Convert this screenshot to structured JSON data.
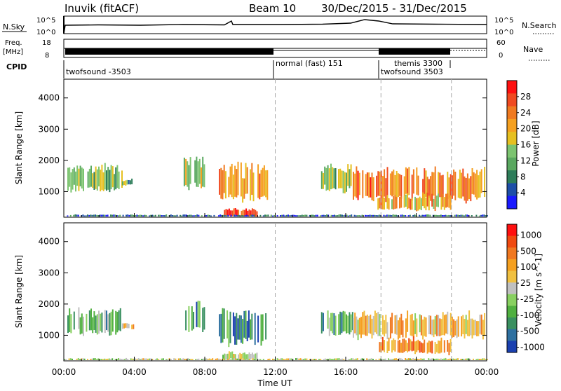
{
  "header": {
    "station": "Inuvik (fitACF)",
    "beam": "Beam 10",
    "date_range": "30/Dec/2015 - 31/Dec/2015"
  },
  "status": {
    "nsky_label": "N.Sky",
    "nsky_ticks": [
      "10^5",
      "10^0"
    ],
    "nsearch_label": "N.Search",
    "freq_label_1": "Freq.",
    "freq_label_2": "[MHz]",
    "freq_ticks": [
      "18",
      "8"
    ],
    "nave_label": "Nave",
    "nave_ticks": [
      "60",
      "0"
    ],
    "cpid_label": "CPID",
    "cpid_segments": [
      {
        "label": "twofsound -3503"
      },
      {
        "label": "normal (fast) 151"
      },
      {
        "label": "themis 3300"
      },
      {
        "label": "twofsound 3503"
      }
    ]
  },
  "chart_data": [
    {
      "type": "heatmap",
      "name": "power-panel",
      "ylabel": "Slant Range [km]",
      "xlabel": "Time UT",
      "x_ticks": [
        "00:00",
        "04:00",
        "08:00",
        "12:00",
        "16:00",
        "20:00",
        "00:00"
      ],
      "y_ticks": [
        "1000",
        "2000",
        "3000",
        "4000"
      ],
      "ylim_km": [
        180,
        4600
      ],
      "xlim_hours": [
        0,
        24
      ],
      "mode_change_times_hours": [
        12,
        18,
        22
      ],
      "colorbar": {
        "label": "Power [dB]",
        "ticks": [
          "4",
          "8",
          "12",
          "16",
          "20",
          "24",
          "28"
        ],
        "colors": [
          "#1a1aff",
          "#1e4fa8",
          "#2e7d5a",
          "#5aa860",
          "#7cc470",
          "#e6c020",
          "#f5a020",
          "#f07a20",
          "#f04a20",
          "#ff1010"
        ]
      },
      "echo_regions": [
        {
          "t0": 0.2,
          "t1": 3.3,
          "r0": 1000,
          "r1": 1800,
          "level": 0.45
        },
        {
          "t0": 3.3,
          "t1": 4.0,
          "r0": 1200,
          "r1": 1400,
          "level": 0.35
        },
        {
          "t0": 6.8,
          "t1": 8.0,
          "r0": 1100,
          "r1": 2100,
          "level": 0.5
        },
        {
          "t0": 8.8,
          "t1": 11.6,
          "r0": 700,
          "r1": 1800,
          "level": 0.7
        },
        {
          "t0": 9.0,
          "t1": 11.0,
          "r0": 200,
          "r1": 450,
          "level": 0.9
        },
        {
          "t0": 14.6,
          "t1": 16.4,
          "r0": 1000,
          "r1": 1800,
          "level": 0.45
        },
        {
          "t0": 16.4,
          "t1": 23.9,
          "r0": 700,
          "r1": 1700,
          "level": 0.75
        },
        {
          "t0": 17.8,
          "t1": 22.0,
          "r0": 400,
          "r1": 900,
          "level": 0.65
        },
        {
          "t0": 0.0,
          "t1": 24.0,
          "r0": 180,
          "r1": 260,
          "level": 0.2
        }
      ]
    },
    {
      "type": "heatmap",
      "name": "velocity-panel",
      "ylabel": "Slant Range [km]",
      "xlabel": "Time UT",
      "x_ticks": [
        "00:00",
        "04:00",
        "08:00",
        "12:00",
        "16:00",
        "20:00",
        "00:00"
      ],
      "y_ticks": [
        "1000",
        "2000",
        "3000",
        "4000"
      ],
      "ylim_km": [
        180,
        4600
      ],
      "xlim_hours": [
        0,
        24
      ],
      "mode_change_times_hours": [
        12,
        18,
        22
      ],
      "colorbar": {
        "label": "Velocity [m s^-1]",
        "ticks": [
          "1000",
          "500",
          "100",
          "25",
          "-25",
          "-100",
          "-500",
          "-1000"
        ],
        "colors": [
          "#1a40b0",
          "#2e70a0",
          "#3a9060",
          "#50b040",
          "#88d060",
          "#c0c0c0",
          "#f0c040",
          "#f5a020",
          "#f07820",
          "#f04a10",
          "#ff1010"
        ]
      },
      "echo_regions": [
        {
          "t0": 0.2,
          "t1": 3.3,
          "r0": 1000,
          "r1": 1800,
          "level": 0.35
        },
        {
          "t0": 3.3,
          "t1": 4.0,
          "r0": 1200,
          "r1": 1400,
          "level": 0.6
        },
        {
          "t0": 6.8,
          "t1": 8.0,
          "r0": 1100,
          "r1": 2100,
          "level": 0.25
        },
        {
          "t0": 8.8,
          "t1": 11.6,
          "r0": 700,
          "r1": 1800,
          "level": 0.2
        },
        {
          "t0": 9.0,
          "t1": 11.0,
          "r0": 200,
          "r1": 450,
          "level": 0.5
        },
        {
          "t0": 14.6,
          "t1": 16.4,
          "r0": 1000,
          "r1": 1800,
          "level": 0.3
        },
        {
          "t0": 16.4,
          "t1": 23.9,
          "r0": 900,
          "r1": 1700,
          "level": 0.6
        },
        {
          "t0": 17.8,
          "t1": 22.0,
          "r0": 400,
          "r1": 900,
          "level": 0.72
        },
        {
          "t0": 0.0,
          "t1": 24.0,
          "r0": 180,
          "r1": 260,
          "level": 0.5
        }
      ]
    }
  ]
}
